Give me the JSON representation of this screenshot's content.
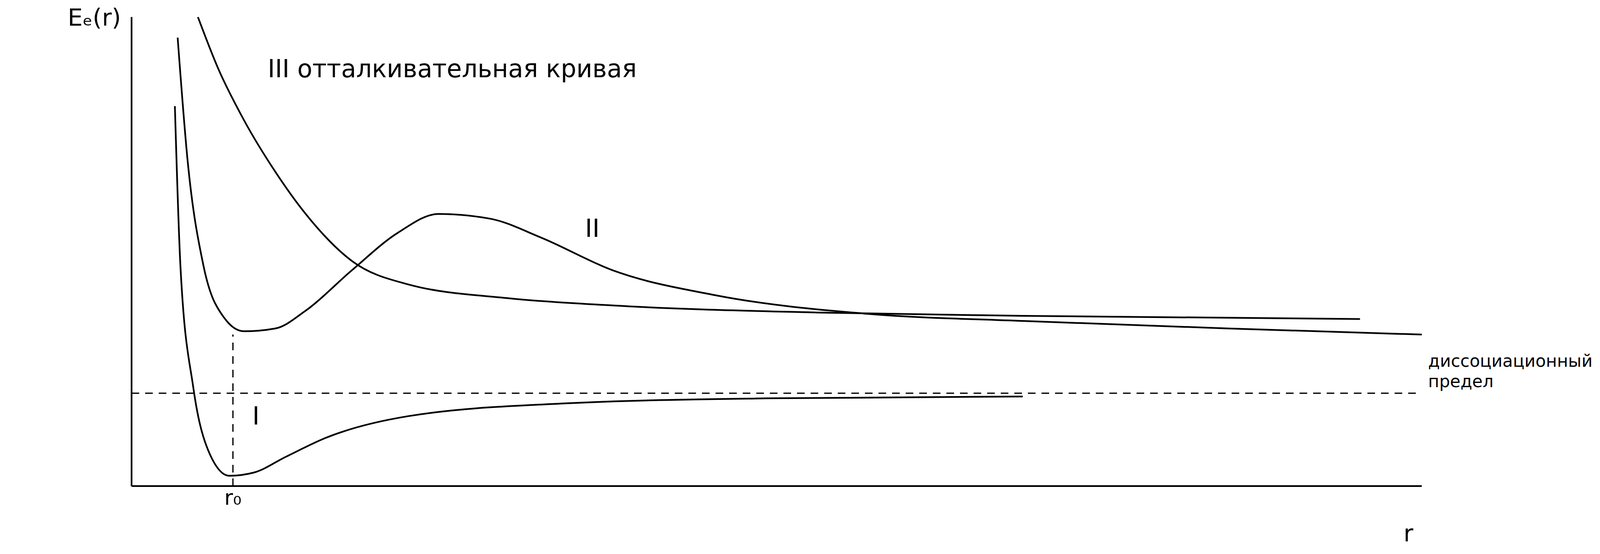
{
  "chart_data": {
    "type": "line",
    "x_label": "r",
    "y_label": "Eₑ(r)",
    "xlim": [
      0,
      14
    ],
    "xticks": [
      {
        "value": 1.1,
        "label": "r₀"
      }
    ],
    "ylim": [
      0,
      10
    ],
    "yticks": [],
    "tick_labels": "x",
    "grid": false,
    "color": "#000000",
    "series": [
      {
        "name": "I",
        "marker": "none",
        "line_style": "solid",
        "x": [
          0.47,
          0.53,
          0.67,
          0.83,
          1.06,
          1.33,
          1.67,
          2.11,
          3.0,
          4.67,
          6.89,
          9.67
        ],
        "values": [
          8.1,
          4.7,
          2.1,
          0.77,
          0.22,
          0.29,
          0.62,
          1.03,
          1.49,
          1.76,
          1.87,
          1.91
        ]
      },
      {
        "name": "II",
        "marker": "none",
        "line_style": "solid",
        "x": [
          0.5,
          0.61,
          0.78,
          1.0,
          1.22,
          1.56,
          1.89,
          2.39,
          2.89,
          3.33,
          3.89,
          4.44,
          5.22,
          6.33,
          8.0,
          9.67,
          11.9,
          14.0
        ],
        "values": [
          9.56,
          6.9,
          4.7,
          3.6,
          3.3,
          3.36,
          3.74,
          4.6,
          5.4,
          5.8,
          5.7,
          5.3,
          4.6,
          4.07,
          3.67,
          3.52,
          3.36,
          3.23
        ]
      },
      {
        "name": "III",
        "marker": "none",
        "line_style": "solid",
        "x": [
          0.72,
          0.94,
          1.22,
          1.56,
          1.89,
          2.39,
          3.0,
          4.11,
          5.22,
          7.44,
          9.67,
          13.33
        ],
        "values": [
          10.0,
          8.9,
          7.8,
          6.7,
          5.8,
          4.8,
          4.3,
          4.0,
          3.85,
          3.7,
          3.63,
          3.56
        ]
      }
    ],
    "annotations": [
      {
        "series": "III",
        "text": "отталкивательная кривая"
      }
    ],
    "dissociation_limit": {
      "value": 1.98,
      "label": "диссоциационный предел",
      "line_style": "dashed"
    }
  }
}
